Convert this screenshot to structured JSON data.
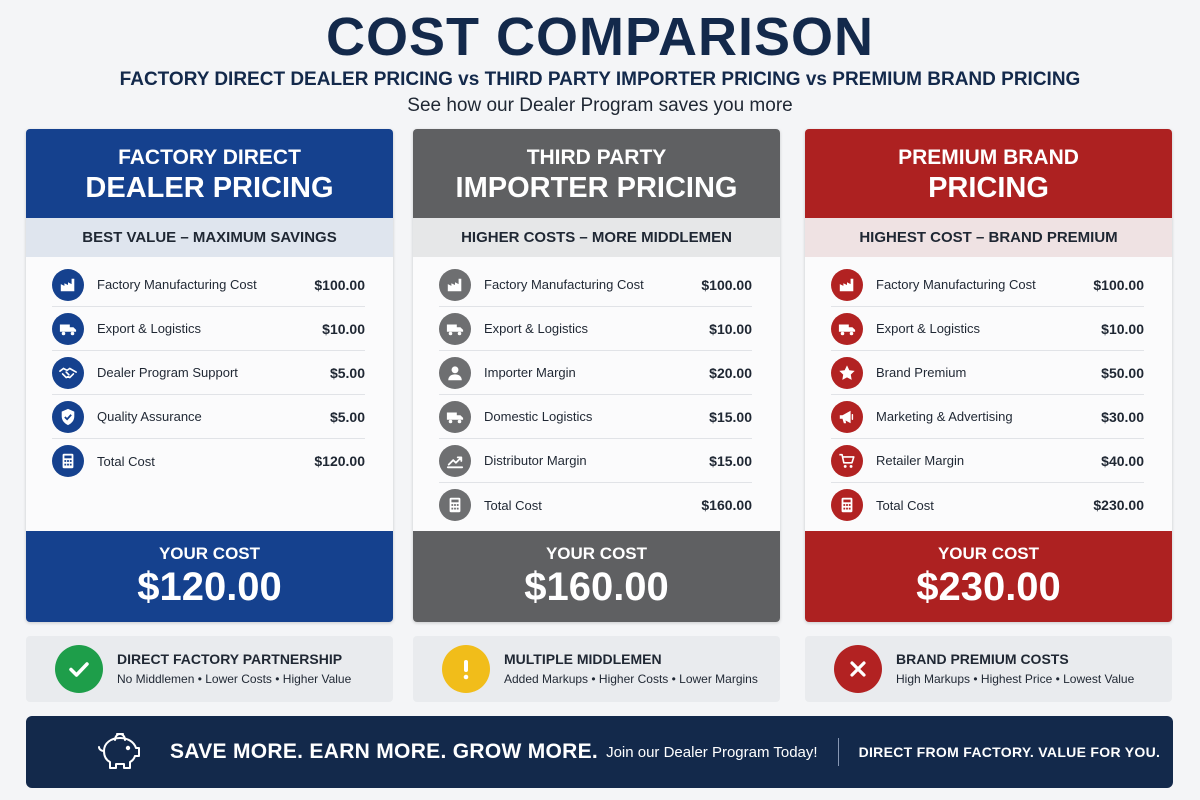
{
  "header": {
    "title": "COST COMPARISON",
    "subtitle": "FACTORY DIRECT DEALER PRICING vs THIRD PARTY IMPORTER PRICING vs PREMIUM BRAND PRICING",
    "tagline": "See how our Dealer Program saves you more"
  },
  "colors": {
    "blue": "#15418e",
    "gray": "#5f6062",
    "red": "#ad2121",
    "navy": "#13294b",
    "green": "#1e9e4a",
    "yellow": "#f1bd1a"
  },
  "columns": [
    {
      "title_line1": "FACTORY DIRECT",
      "title_line2": "DEALER PRICING",
      "strip": "BEST VALUE – MAXIMUM SAVINGS",
      "rows": [
        {
          "icon": "factory-icon",
          "label": "Factory Manufacturing Cost",
          "value": "$100.00"
        },
        {
          "icon": "truck-icon",
          "label": "Export & Logistics",
          "value": "$10.00"
        },
        {
          "icon": "handshake-icon",
          "label": "Dealer Program Support",
          "value": "$5.00"
        },
        {
          "icon": "shield-check-icon",
          "label": "Quality Assurance",
          "value": "$5.00"
        },
        {
          "icon": "calculator-icon",
          "label": "Total Cost",
          "value": "$120.00"
        }
      ],
      "cost_label": "YOUR COST",
      "cost_value": "$120.00",
      "note_icon": "checkmark-icon",
      "note_title": "DIRECT FACTORY PARTNERSHIP",
      "note_sub": "No Middlemen • Lower Costs • Higher Value"
    },
    {
      "title_line1": "THIRD PARTY",
      "title_line2": "IMPORTER PRICING",
      "strip": "HIGHER COSTS – MORE MIDDLEMEN",
      "rows": [
        {
          "icon": "factory-icon",
          "label": "Factory Manufacturing Cost",
          "value": "$100.00"
        },
        {
          "icon": "truck-icon",
          "label": "Export & Logistics",
          "value": "$10.00"
        },
        {
          "icon": "person-icon",
          "label": "Importer Margin",
          "value": "$20.00"
        },
        {
          "icon": "truck-icon",
          "label": "Domestic Logistics",
          "value": "$15.00"
        },
        {
          "icon": "trend-chart-icon",
          "label": "Distributor Margin",
          "value": "$15.00"
        },
        {
          "icon": "calculator-icon",
          "label": "Total Cost",
          "value": "$160.00"
        }
      ],
      "cost_label": "YOUR COST",
      "cost_value": "$160.00",
      "note_icon": "exclamation-icon",
      "note_title": "MULTIPLE MIDDLEMEN",
      "note_sub": "Added Markups • Higher Costs • Lower Margins"
    },
    {
      "title_line1": "PREMIUM BRAND",
      "title_line2": "PRICING",
      "strip": "HIGHEST COST – BRAND PREMIUM",
      "rows": [
        {
          "icon": "factory-icon",
          "label": "Factory Manufacturing Cost",
          "value": "$100.00"
        },
        {
          "icon": "truck-icon",
          "label": "Export & Logistics",
          "value": "$10.00"
        },
        {
          "icon": "star-icon",
          "label": "Brand Premium",
          "value": "$50.00"
        },
        {
          "icon": "megaphone-icon",
          "label": "Marketing & Advertising",
          "value": "$30.00"
        },
        {
          "icon": "cart-icon",
          "label": "Retailer Margin",
          "value": "$40.00"
        },
        {
          "icon": "calculator-icon",
          "label": "Total Cost",
          "value": "$230.00"
        }
      ],
      "cost_label": "YOUR COST",
      "cost_value": "$230.00",
      "note_icon": "x-icon",
      "note_title": "BRAND PREMIUM COSTS",
      "note_sub": "High Markups • Highest Price • Lowest Value"
    }
  ],
  "banner": {
    "icon": "piggy-bank-icon",
    "main": "SAVE MORE. EARN MORE. GROW MORE.",
    "join": "Join our Dealer Program Today!",
    "right": "DIRECT FROM FACTORY. VALUE FOR YOU."
  }
}
